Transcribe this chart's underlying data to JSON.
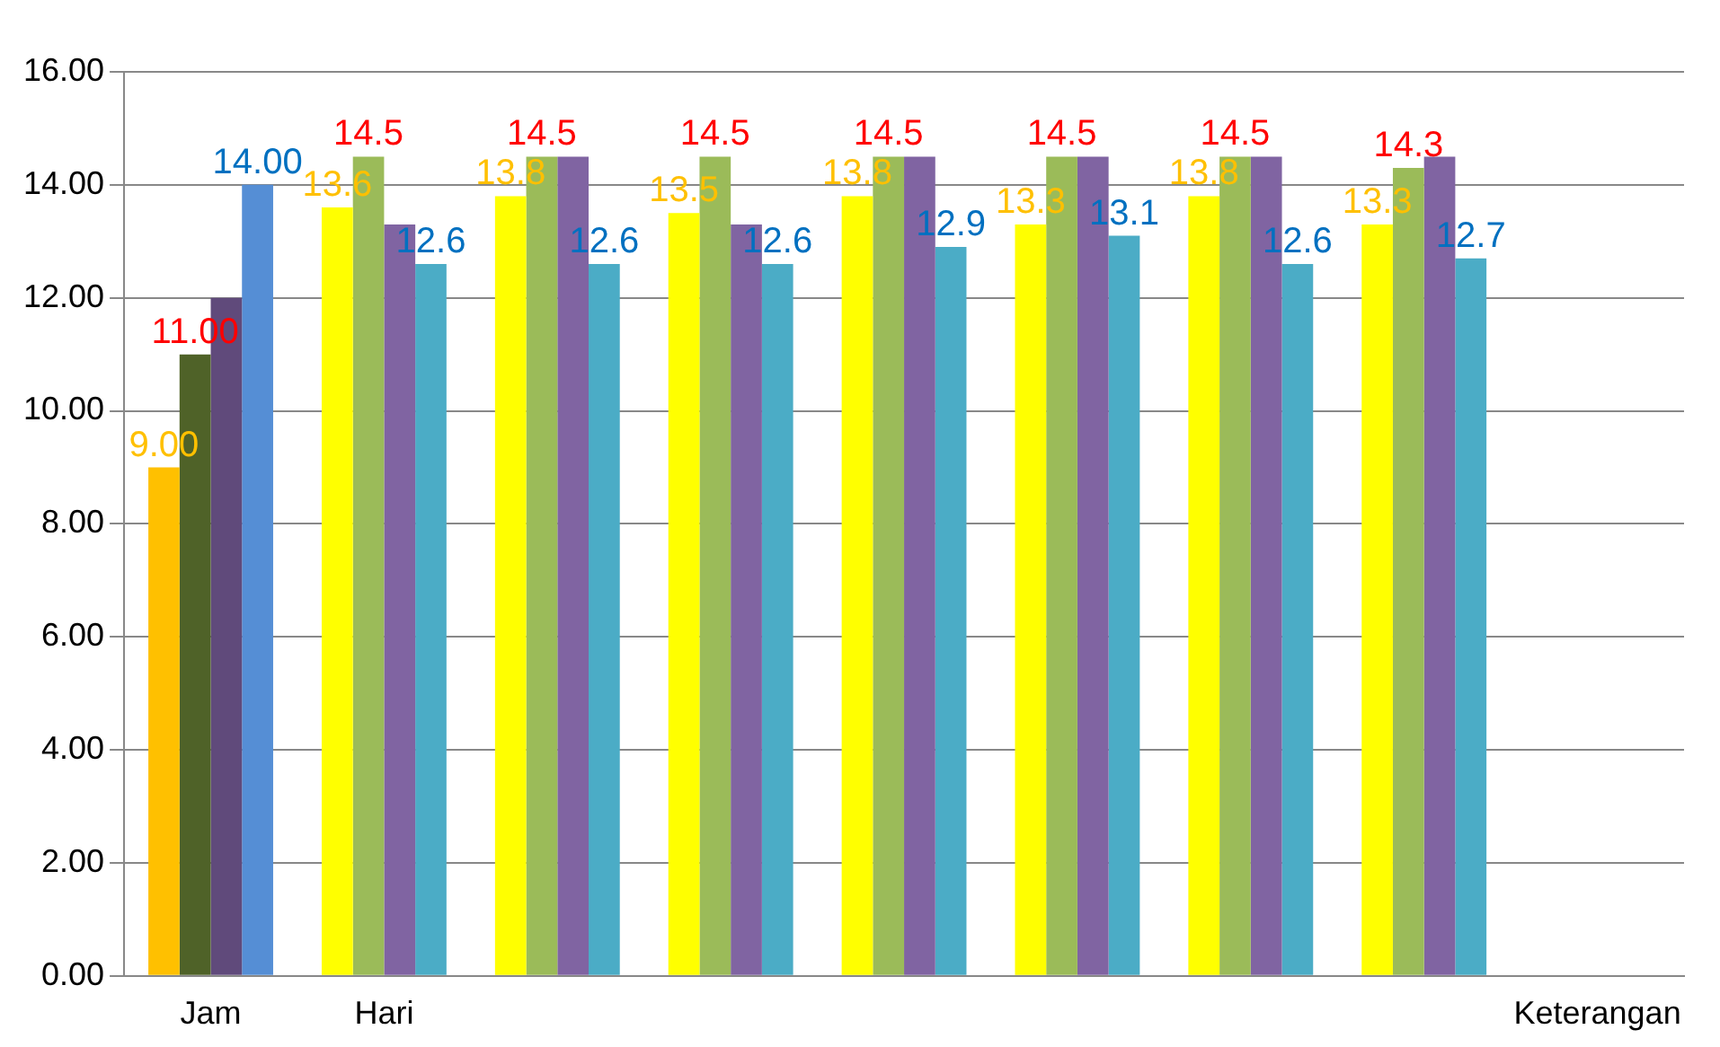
{
  "chart_data": {
    "type": "bar",
    "categories": [
      "Jam",
      "Hari",
      null,
      null,
      null,
      null,
      null,
      null,
      "Keterangan"
    ],
    "series": [
      {
        "colors": [
          "#ffc000",
          "#ffff00",
          "#ffff00",
          "#ffff00",
          "#ffff00",
          "#ffff00",
          "#ffff00",
          "#ffff00",
          "#ffff00"
        ],
        "values": [
          9.0,
          13.6,
          13.8,
          13.5,
          13.8,
          13.3,
          13.8,
          13.3,
          null
        ],
        "value_labels": [
          "9.00",
          "13.6",
          "13.8",
          "13.5",
          "13.8",
          "13.3",
          "13.8",
          "13.3",
          null
        ]
      },
      {
        "colors": [
          "#4f6228",
          "#9bbb59",
          "#9bbb59",
          "#9bbb59",
          "#9bbb59",
          "#9bbb59",
          "#9bbb59",
          "#9bbb59",
          "#9bbb59"
        ],
        "values": [
          11.0,
          14.5,
          14.5,
          14.5,
          14.5,
          14.5,
          14.5,
          14.3,
          null
        ],
        "value_labels": [
          "11.00",
          "14.5",
          "14.5",
          "14.5",
          "14.5",
          "14.5",
          "14.5",
          "14.3",
          null
        ]
      },
      {
        "colors": [
          "#604a7b",
          "#8064a2",
          "#8064a2",
          "#8064a2",
          "#8064a2",
          "#8064a2",
          "#8064a2",
          "#8064a2",
          "#8064a2"
        ],
        "values": [
          12.0,
          13.3,
          14.5,
          13.3,
          14.5,
          14.5,
          14.5,
          14.5,
          null
        ]
      },
      {
        "colors": [
          "#558ed5",
          "#4bacc6",
          "#4bacc6",
          "#4bacc6",
          "#4bacc6",
          "#4bacc6",
          "#4bacc6",
          "#4bacc6",
          "#4bacc6"
        ],
        "values": [
          14.0,
          12.6,
          12.6,
          12.6,
          12.9,
          13.1,
          12.6,
          12.7,
          null
        ],
        "value_labels": [
          "14.00",
          "12.6",
          "12.6",
          "12.6",
          "12.9",
          "13.1",
          "12.6",
          "12.7",
          null
        ]
      }
    ],
    "ylim": [
      0,
      16
    ],
    "yticks": [
      {
        "value": 0,
        "label": "0.00"
      },
      {
        "value": 2,
        "label": "2.00"
      },
      {
        "value": 4,
        "label": "4.00"
      },
      {
        "value": 6,
        "label": "6.00"
      },
      {
        "value": 8,
        "label": "8.00"
      },
      {
        "value": 10,
        "label": "10.00"
      },
      {
        "value": 12,
        "label": "12.00"
      },
      {
        "value": 14,
        "label": "14.00"
      },
      {
        "value": 16,
        "label": "16.00"
      }
    ],
    "grid": "y",
    "legend": false
  }
}
